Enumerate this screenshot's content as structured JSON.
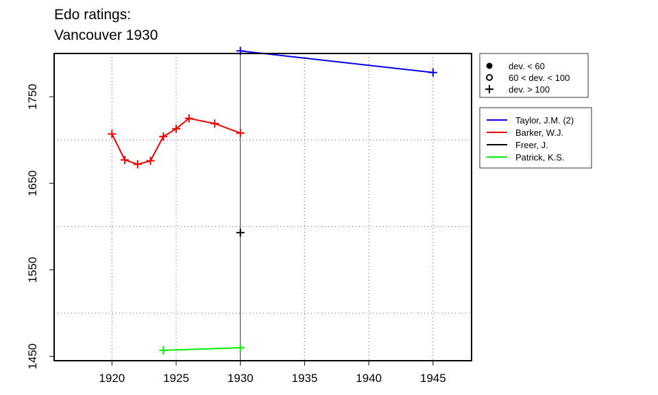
{
  "title_lines": [
    "Edo ratings:",
    "Vancouver 1930"
  ],
  "chart_data": {
    "type": "line",
    "title": "Edo ratings:\nVancouver 1930",
    "xlim": [
      1915.5,
      1948
    ],
    "ylim": [
      1445,
      1800
    ],
    "x_ticks": [
      1920,
      1925,
      1930,
      1935,
      1940,
      1945
    ],
    "y_ticks": [
      1450,
      1550,
      1650,
      1750
    ],
    "y_grid": [
      1500,
      1600,
      1700,
      1800
    ],
    "grid": true,
    "vertical_line_x": 1930,
    "symbol_legend": [
      {
        "symbol": "filled-circle",
        "label": "dev. < 60"
      },
      {
        "symbol": "open-circle",
        "label": "60 < dev. < 100"
      },
      {
        "symbol": "plus",
        "label": "dev. > 100"
      }
    ],
    "series": [
      {
        "name": "Taylor, J.M. (2)",
        "color": "#0000ee",
        "x": [
          1930,
          1945
        ],
        "y": [
          1803,
          1778
        ]
      },
      {
        "name": "Barker, W.J.",
        "color": "#ee0000",
        "x": [
          1920,
          1921,
          1922,
          1923,
          1924,
          1925,
          1926,
          1928,
          1930
        ],
        "y": [
          1707,
          1677,
          1672,
          1676,
          1704,
          1713,
          1725,
          1719,
          1708
        ]
      },
      {
        "name": "Freer, J.",
        "color": "#000000",
        "x": [
          1930
        ],
        "y": [
          1593
        ]
      },
      {
        "name": "Patrick, K.S.",
        "color": "#00ee00",
        "x": [
          1924,
          1930
        ],
        "y": [
          1457,
          1460
        ]
      }
    ]
  }
}
